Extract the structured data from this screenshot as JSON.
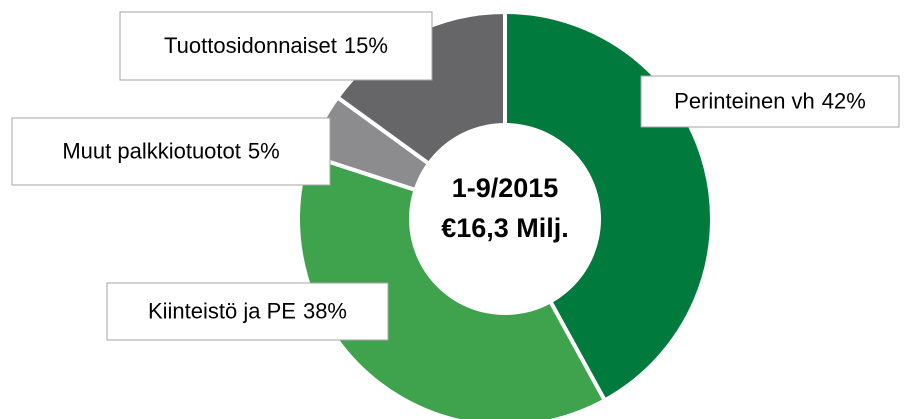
{
  "chart_data": {
    "type": "donut",
    "center_label": [
      "1-9/2015",
      "€16,3 Milj."
    ],
    "categories": [
      "Perinteinen vh",
      "Kiinteistö ja PE",
      "Muut palkkiotuotot",
      "Tuottosidonnaiset"
    ],
    "values": [
      42,
      38,
      5,
      15
    ],
    "value_labels": [
      "42%",
      "38%",
      "5%",
      "15%"
    ],
    "colors": [
      "#007a3d",
      "#3fa34d",
      "#8c8c8e",
      "#666668"
    ]
  }
}
